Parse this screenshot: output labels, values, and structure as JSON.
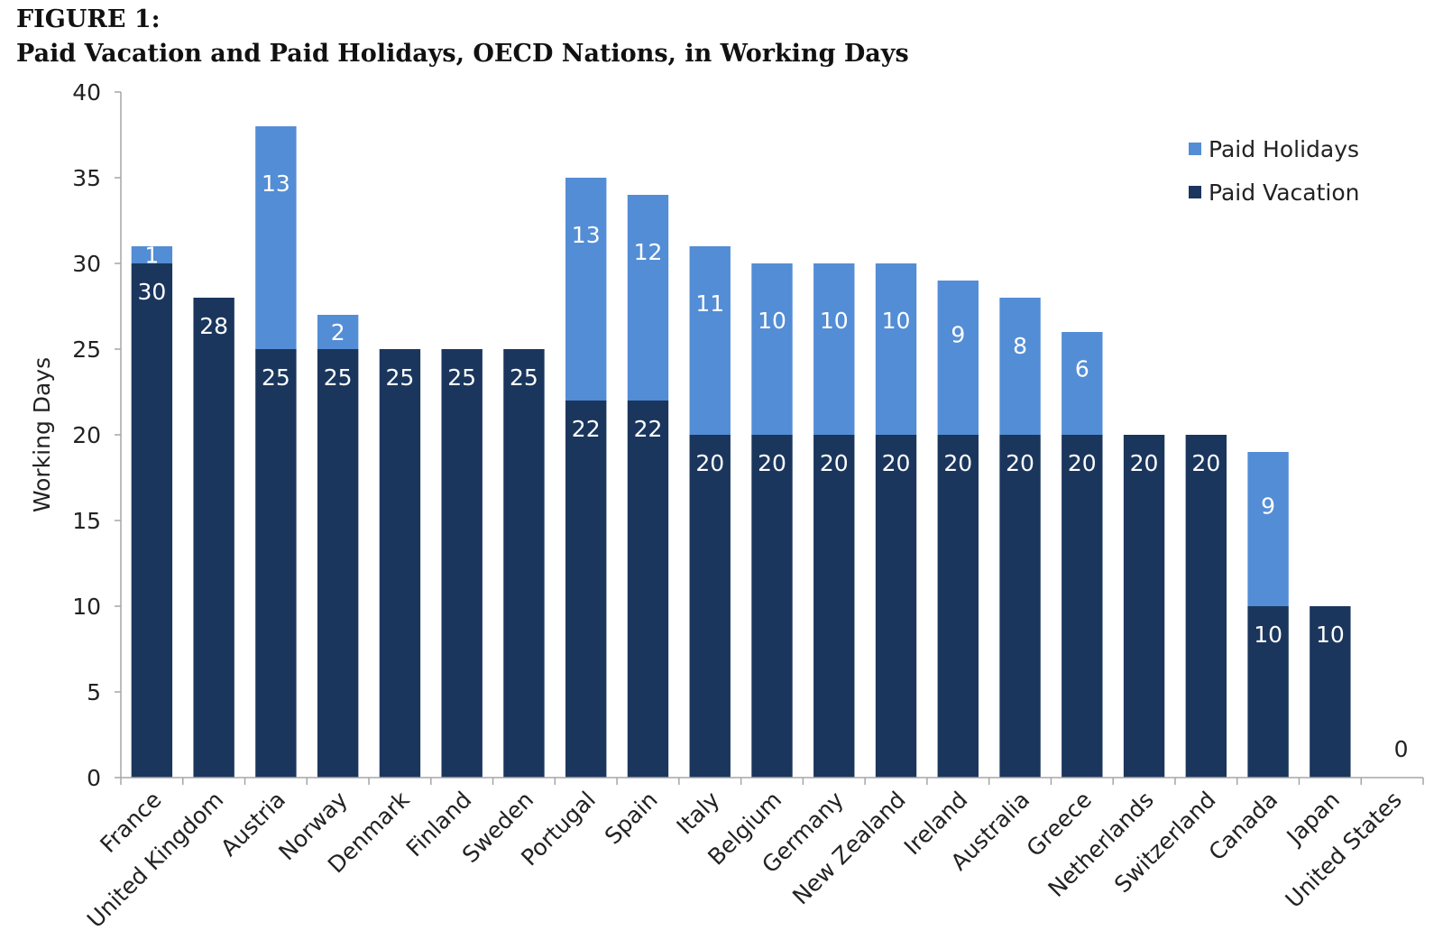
{
  "figure": {
    "label": "FIGURE 1:",
    "title": "Paid Vacation and Paid Holidays, OECD Nations, in Working Days"
  },
  "colors": {
    "paid_vacation": "#1b365d",
    "paid_holidays": "#538dd5",
    "axis": "#a6a6a6",
    "text": "#222222",
    "label_on_bar": "#ffffff"
  },
  "chart_data": {
    "type": "bar",
    "stacked": true,
    "title": "Paid Vacation and Paid Holidays, OECD Nations, in Working Days",
    "xlabel": "",
    "ylabel": "Working Days",
    "ylim": [
      0,
      40
    ],
    "yticks": [
      0,
      5,
      10,
      15,
      20,
      25,
      30,
      35,
      40
    ],
    "grid": false,
    "legend_position": "top-right",
    "categories": [
      "France",
      "United Kingdom",
      "Austria",
      "Norway",
      "Denmark",
      "Finland",
      "Sweden",
      "Portugal",
      "Spain",
      "Italy",
      "Belgium",
      "Germany",
      "New Zealand",
      "Ireland",
      "Australia",
      "Greece",
      "Netherlands",
      "Switzerland",
      "Canada",
      "Japan",
      "United States"
    ],
    "series": [
      {
        "name": "Paid Vacation",
        "color": "#1b365d",
        "values": [
          30,
          28,
          25,
          25,
          25,
          25,
          25,
          22,
          22,
          20,
          20,
          20,
          20,
          20,
          20,
          20,
          20,
          20,
          10,
          10,
          0
        ]
      },
      {
        "name": "Paid Holidays",
        "color": "#538dd5",
        "values": [
          1,
          0,
          13,
          2,
          0,
          0,
          0,
          13,
          12,
          11,
          10,
          10,
          10,
          9,
          8,
          6,
          0,
          0,
          9,
          0,
          0
        ]
      }
    ],
    "legend_order": [
      "Paid Holidays",
      "Paid Vacation"
    ],
    "annotations": [
      {
        "category": "United States",
        "text": "0"
      }
    ]
  }
}
